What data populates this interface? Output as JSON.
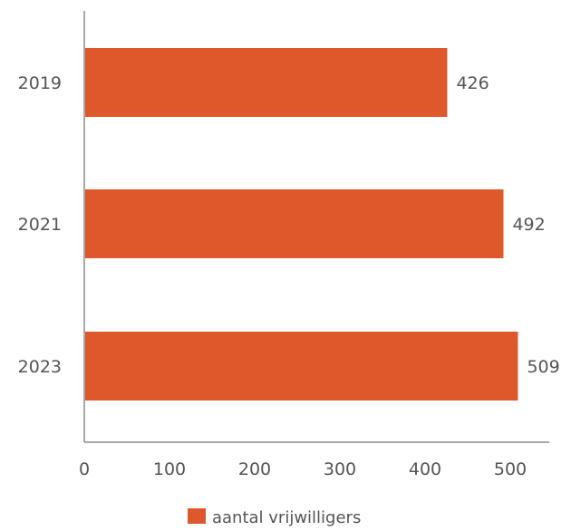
{
  "chart_data": {
    "type": "bar",
    "orientation": "horizontal",
    "categories": [
      "2019",
      "2021",
      "2023"
    ],
    "series": [
      {
        "name": "aantal vrijwilligers",
        "values": [
          426,
          492,
          509
        ],
        "color": "#de582c"
      }
    ],
    "xlim": [
      0,
      500
    ],
    "xticks": [
      "0",
      "100",
      "200",
      "300",
      "400",
      "500"
    ],
    "value_labels": [
      "426",
      "492",
      "509"
    ],
    "grid": false,
    "legend": "bottom",
    "axis_color": "#8c8c8c",
    "text_color": "#555555"
  }
}
